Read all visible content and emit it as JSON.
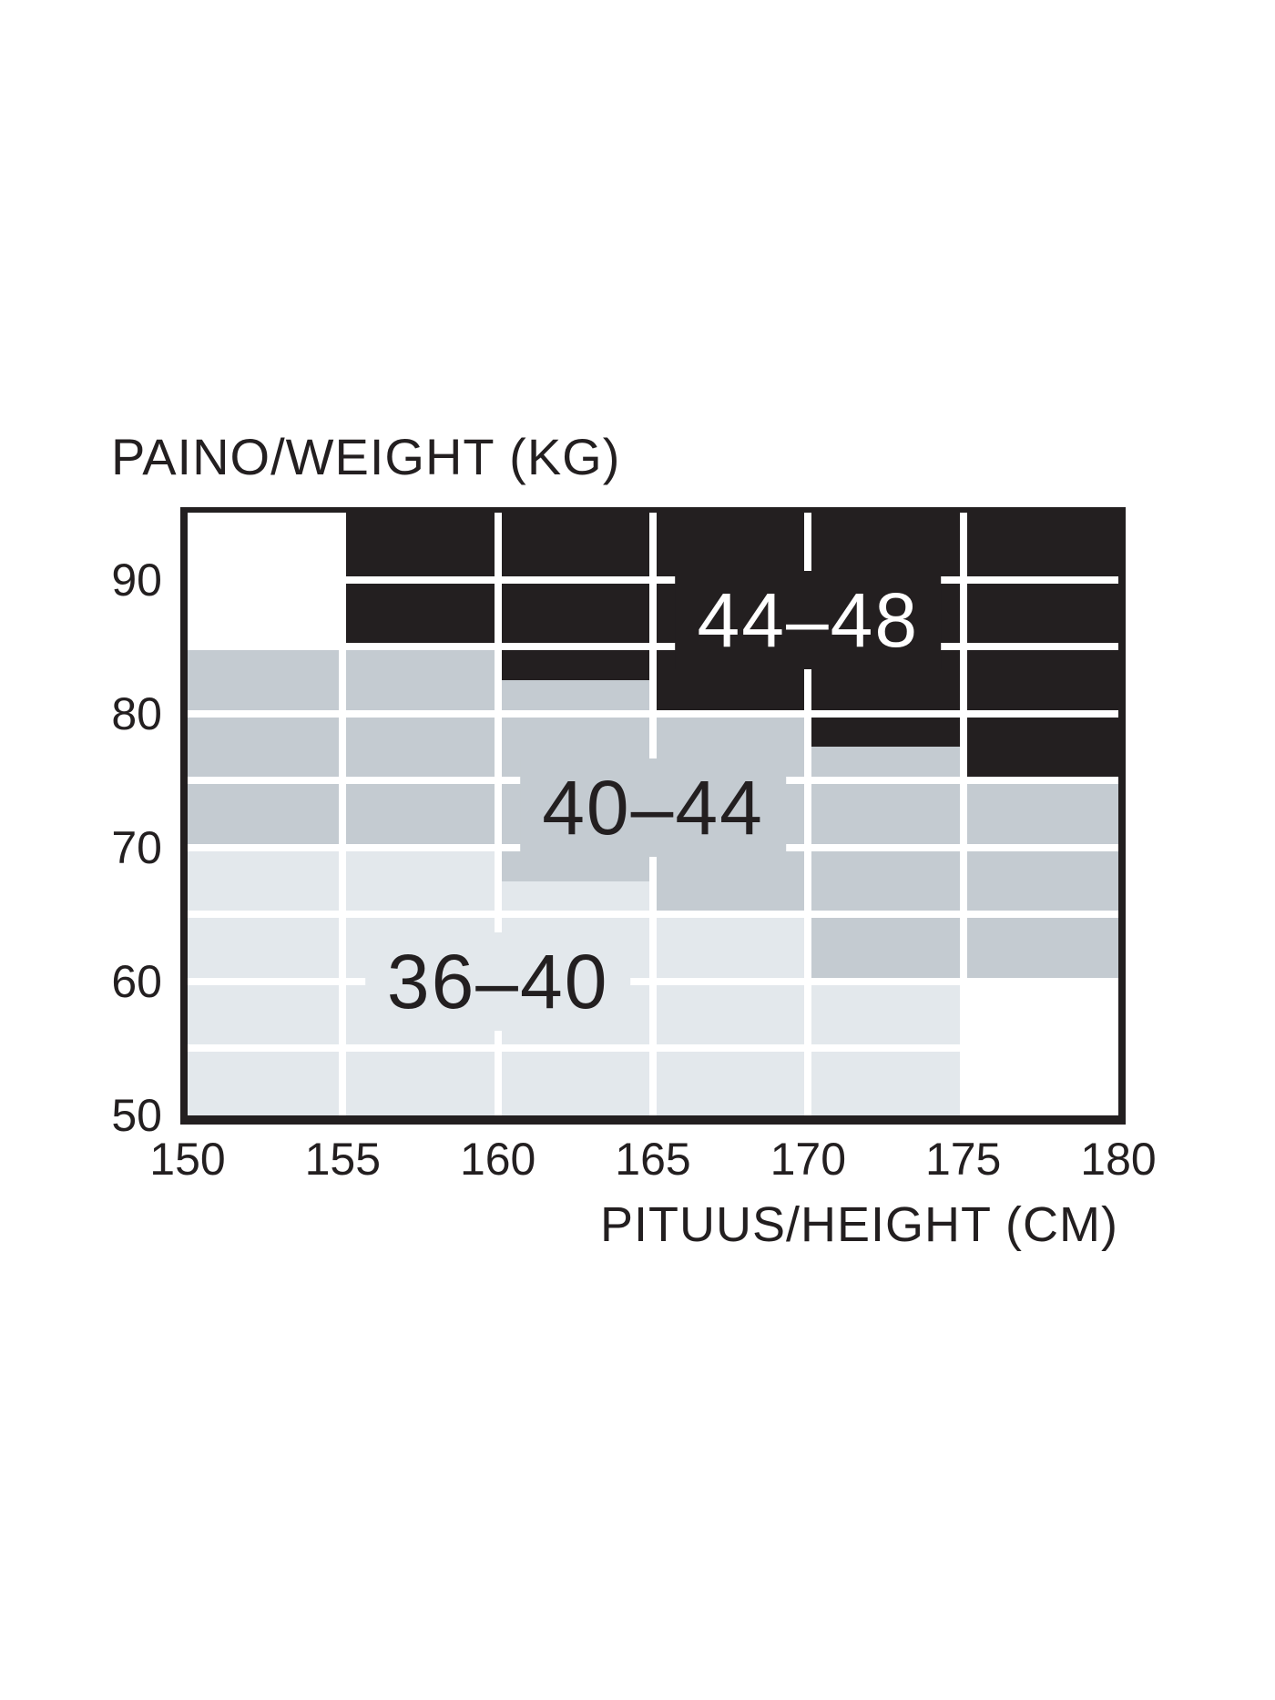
{
  "title": "PAINO/WEIGHT (KG)",
  "x_axis_title": "PITUUS/HEIGHT (CM)",
  "colors": {
    "ink": "#231f20",
    "black": "#231f20",
    "medium": "#c4cbd1",
    "light": "#e3e8ec",
    "white": "#ffffff",
    "gridline": "#ffffff"
  },
  "chart_data": {
    "type": "heatmap",
    "title": "PAINO/WEIGHT (KG)",
    "xlabel": "PITUUS/HEIGHT (CM)",
    "ylabel": "PAINO/WEIGHT (KG)",
    "x_ticks": [
      150,
      155,
      160,
      165,
      170,
      175,
      180
    ],
    "y_ticks": [
      90,
      80,
      70,
      60,
      50
    ],
    "x_range_cm": [
      150,
      180
    ],
    "y_range_kg": [
      50,
      95
    ],
    "grid_step": {
      "x_cm": 5,
      "y_kg": 5
    },
    "grid": "on",
    "sizes": [
      {
        "label": "36–40",
        "color_key": "light",
        "text_color_key": "ink",
        "label_pos": {
          "cm": 160,
          "kg": 60
        }
      },
      {
        "label": "40–44",
        "color_key": "medium",
        "text_color_key": "ink",
        "label_pos": {
          "cm": 165,
          "kg": 73
        }
      },
      {
        "label": "44–48",
        "color_key": "black",
        "text_color_key": "white",
        "label_pos": {
          "cm": 170,
          "kg": 87
        }
      }
    ],
    "columns": [
      {
        "cm": [
          150,
          155
        ],
        "bands": [
          {
            "key": "white",
            "kg": [
              95,
              85
            ]
          },
          {
            "key": "medium",
            "kg": [
              85,
              70
            ]
          },
          {
            "key": "light",
            "kg": [
              70,
              50
            ]
          }
        ]
      },
      {
        "cm": [
          155,
          160
        ],
        "bands": [
          {
            "key": "black",
            "kg": [
              95,
              85
            ]
          },
          {
            "key": "medium",
            "kg": [
              85,
              70
            ]
          },
          {
            "key": "light",
            "kg": [
              70,
              50
            ]
          }
        ]
      },
      {
        "cm": [
          160,
          165
        ],
        "bands": [
          {
            "key": "black",
            "kg": [
              95,
              82.5
            ]
          },
          {
            "key": "medium",
            "kg": [
              82.5,
              67.5
            ]
          },
          {
            "key": "light",
            "kg": [
              67.5,
              50
            ]
          }
        ]
      },
      {
        "cm": [
          165,
          170
        ],
        "bands": [
          {
            "key": "black",
            "kg": [
              95,
              80
            ]
          },
          {
            "key": "medium",
            "kg": [
              80,
              65
            ]
          },
          {
            "key": "light",
            "kg": [
              65,
              50
            ]
          }
        ]
      },
      {
        "cm": [
          170,
          175
        ],
        "bands": [
          {
            "key": "black",
            "kg": [
              95,
              77.5
            ]
          },
          {
            "key": "medium",
            "kg": [
              77.5,
              60
            ]
          },
          {
            "key": "light",
            "kg": [
              60,
              50
            ]
          }
        ]
      },
      {
        "cm": [
          175,
          180
        ],
        "bands": [
          {
            "key": "black",
            "kg": [
              95,
              75
            ]
          },
          {
            "key": "medium",
            "kg": [
              75,
              60
            ]
          },
          {
            "key": "white",
            "kg": [
              60,
              50
            ]
          }
        ]
      }
    ]
  }
}
